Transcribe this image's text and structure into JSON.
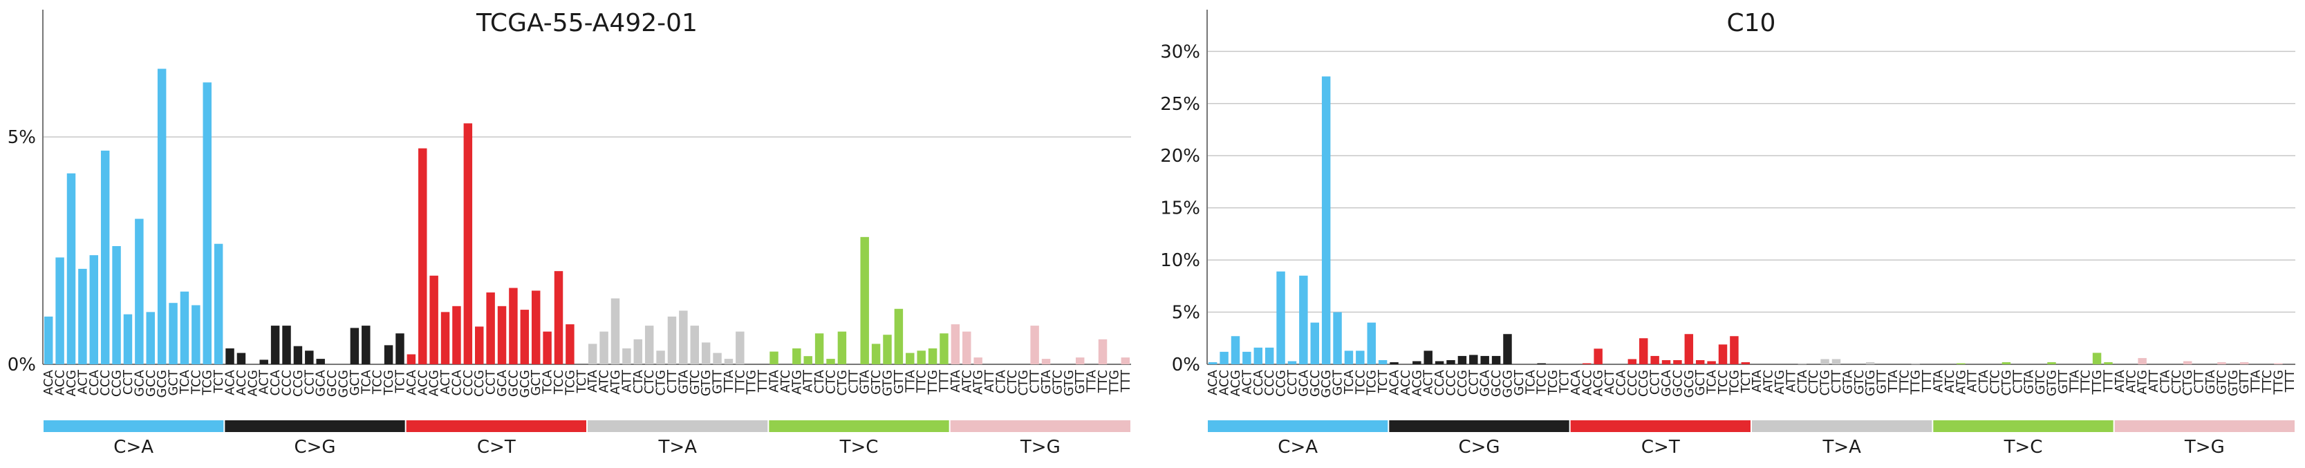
{
  "contexts": [
    "ACA",
    "ACC",
    "ACG",
    "ACT",
    "CCA",
    "CCC",
    "CCG",
    "CCT",
    "GCA",
    "GCC",
    "GCG",
    "GCT",
    "TCA",
    "TCC",
    "TCG",
    "TCT",
    "ACA",
    "ACC",
    "ACG",
    "ACT",
    "CCA",
    "CCC",
    "CCG",
    "CCT",
    "GCA",
    "GCC",
    "GCG",
    "GCT",
    "TCA",
    "TCC",
    "TCG",
    "TCT",
    "ACA",
    "ACC",
    "ACG",
    "ACT",
    "CCA",
    "CCC",
    "CCG",
    "CCT",
    "GCA",
    "GCC",
    "GCG",
    "GCT",
    "TCA",
    "TCC",
    "TCG",
    "TCT",
    "ATA",
    "ATC",
    "ATG",
    "ATT",
    "CTA",
    "CTC",
    "CTG",
    "CTT",
    "GTA",
    "GTC",
    "GTG",
    "GTT",
    "TTA",
    "TTC",
    "TTG",
    "TTT",
    "ATA",
    "ATC",
    "ATG",
    "ATT",
    "CTA",
    "CTC",
    "CTG",
    "CTT",
    "GTA",
    "GTC",
    "GTG",
    "GTT",
    "TTA",
    "TTC",
    "TTG",
    "TTT",
    "ATA",
    "ATC",
    "ATG",
    "ATT",
    "CTA",
    "CTC",
    "CTG",
    "CTT",
    "GTA",
    "GTC",
    "GTG",
    "GTT",
    "TTA",
    "TTC",
    "TTG",
    "TTT"
  ],
  "chart_data": [
    {
      "type": "bar",
      "title": "TCGA-55-A492-01",
      "ylim": [
        0,
        7.8
      ],
      "yticks": [
        "0%",
        "5%"
      ],
      "ytick_values": [
        0,
        5
      ],
      "grid": true,
      "groups": [
        {
          "label": "C>A",
          "color": "#52bfef"
        },
        {
          "label": "C>G",
          "color": "#1f1f1f"
        },
        {
          "label": "C>T",
          "color": "#e5282d"
        },
        {
          "label": "T>A",
          "color": "#c9c9c9"
        },
        {
          "label": "T>C",
          "color": "#93d04b"
        },
        {
          "label": "T>G",
          "color": "#edbfc3"
        }
      ],
      "values": [
        1.05,
        2.35,
        4.2,
        2.1,
        2.4,
        4.7,
        2.6,
        1.1,
        3.2,
        1.15,
        6.5,
        1.35,
        1.6,
        1.3,
        6.2,
        2.65,
        0.35,
        0.25,
        0,
        0.1,
        0.85,
        0.85,
        0.4,
        0.3,
        0.12,
        0,
        0,
        0.8,
        0.85,
        0,
        0.42,
        0.68,
        0.22,
        4.75,
        1.95,
        1.15,
        1.28,
        5.3,
        0.83,
        1.58,
        1.28,
        1.68,
        1.2,
        1.62,
        0.72,
        2.05,
        0.88,
        0,
        0.45,
        0.72,
        1.45,
        0.35,
        0.55,
        0.85,
        0.3,
        1.05,
        1.18,
        0.85,
        0.48,
        0.25,
        0.12,
        0.72,
        0,
        0,
        0.28,
        0,
        0.35,
        0.18,
        0.68,
        0.12,
        0.72,
        0,
        2.8,
        0.45,
        0.65,
        1.22,
        0.25,
        0.3,
        0.35,
        0.68,
        0.88,
        0.72,
        0.15,
        0,
        0,
        0,
        0,
        0.85,
        0.12,
        0,
        0,
        0.15,
        0,
        0.55,
        0,
        0.15
      ]
    },
    {
      "type": "bar",
      "title": "C10",
      "ylim": [
        0,
        34
      ],
      "yticks": [
        "0%",
        "5%",
        "10%",
        "15%",
        "20%",
        "25%",
        "30%"
      ],
      "ytick_values": [
        0,
        5,
        10,
        15,
        20,
        25,
        30
      ],
      "grid": true,
      "groups": [
        {
          "label": "C>A",
          "color": "#52bfef"
        },
        {
          "label": "C>G",
          "color": "#1f1f1f"
        },
        {
          "label": "C>T",
          "color": "#e5282d"
        },
        {
          "label": "T>A",
          "color": "#c9c9c9"
        },
        {
          "label": "T>C",
          "color": "#93d04b"
        },
        {
          "label": "T>G",
          "color": "#edbfc3"
        }
      ],
      "values": [
        0.2,
        1.2,
        2.7,
        1.2,
        1.6,
        1.6,
        8.9,
        0.3,
        8.5,
        4.0,
        27.6,
        5.0,
        1.3,
        1.3,
        4.0,
        0.4,
        0.2,
        0,
        0.3,
        1.3,
        0.3,
        0.4,
        0.8,
        0.9,
        0.8,
        0.8,
        2.9,
        0,
        0,
        0.1,
        0,
        0,
        0,
        0.1,
        1.5,
        0,
        0,
        0.5,
        2.5,
        0.8,
        0.4,
        0.4,
        2.9,
        0.4,
        0.3,
        1.9,
        2.7,
        0.2,
        0,
        0,
        0,
        0,
        0.1,
        0,
        0.5,
        0.5,
        0,
        0,
        0.2,
        0,
        0,
        0,
        0.1,
        0,
        0,
        0,
        0.1,
        0,
        0,
        0,
        0.2,
        0,
        0,
        0,
        0.2,
        0,
        0,
        0,
        1.1,
        0.2,
        0,
        0,
        0.6,
        0,
        0,
        0,
        0.3,
        0,
        0,
        0.2,
        0,
        0.2,
        0,
        0,
        0.1,
        0
      ]
    }
  ]
}
